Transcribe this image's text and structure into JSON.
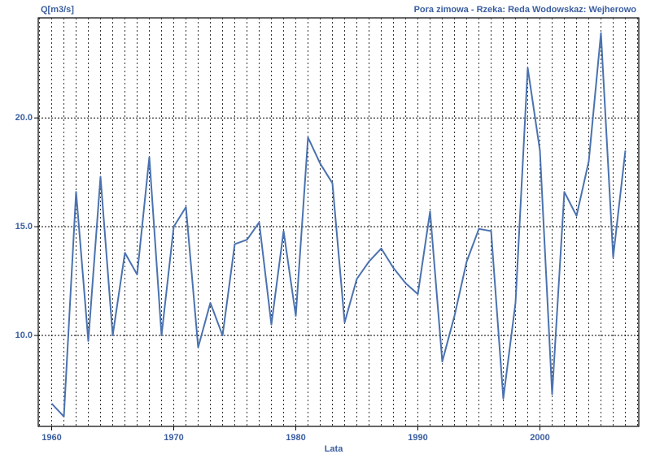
{
  "chart_data": {
    "type": "line",
    "title": "Pora zimowa - Rzeka: Reda Wodowskaz: Wejherowo",
    "y_label": "Q[m3/s]",
    "x_label": "Lata",
    "x": [
      1960,
      1961,
      1962,
      1963,
      1964,
      1965,
      1966,
      1967,
      1968,
      1969,
      1970,
      1971,
      1972,
      1973,
      1974,
      1975,
      1976,
      1977,
      1978,
      1979,
      1980,
      1981,
      1982,
      1983,
      1984,
      1985,
      1986,
      1987,
      1988,
      1989,
      1990,
      1991,
      1992,
      1993,
      1994,
      1995,
      1996,
      1997,
      1998,
      1999,
      2000,
      2001,
      2002,
      2003,
      2004,
      2005,
      2006,
      2007
    ],
    "series": [
      {
        "color": "#4a72b0",
        "values": [
          6.87,
          6.27,
          16.6,
          9.75,
          17.3,
          10.0,
          13.8,
          12.8,
          18.2,
          10.0,
          15.0,
          15.9,
          9.45,
          11.5,
          10.0,
          14.2,
          14.4,
          15.2,
          10.5,
          14.8,
          10.9,
          19.1,
          17.9,
          17.0,
          10.6,
          12.6,
          13.4,
          14.0,
          13.1,
          12.4,
          11.9,
          15.7,
          8.8,
          10.9,
          13.4,
          14.9,
          14.8,
          7.1,
          11.5,
          22.3,
          18.5,
          7.3,
          16.6,
          15.5,
          18.0,
          23.9,
          13.6,
          18.5
        ]
      }
    ],
    "xlim": [
      1958.9,
      2008.1
    ],
    "ylim": [
      5.82,
      24.6
    ],
    "xticks": [
      1960,
      1970,
      1980,
      1990,
      2000
    ],
    "xminorticks": [
      1959,
      1960,
      1961,
      1962,
      1963,
      1964,
      1965,
      1966,
      1967,
      1968,
      1969,
      1970,
      1971,
      1972,
      1973,
      1974,
      1975,
      1976,
      1977,
      1978,
      1979,
      1980,
      1981,
      1982,
      1983,
      1984,
      1985,
      1986,
      1987,
      1988,
      1989,
      1990,
      1991,
      1992,
      1993,
      1994,
      1995,
      1996,
      1997,
      1998,
      1999,
      2000,
      2001,
      2002,
      2003,
      2004,
      2005,
      2006,
      2007,
      2008
    ],
    "yticks": [
      {
        "value": 10,
        "label": "10.0"
      },
      {
        "value": 15,
        "label": "15.0"
      },
      {
        "value": 20,
        "label": "20.0"
      }
    ],
    "grid": true
  }
}
